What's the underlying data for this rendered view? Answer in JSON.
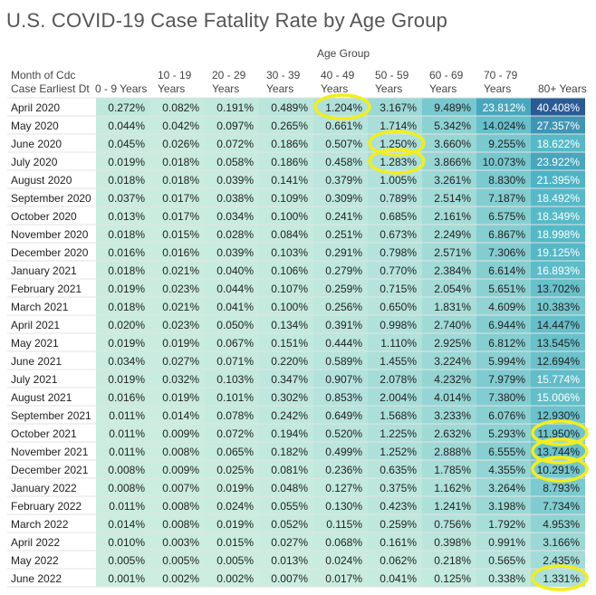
{
  "title": "U.S. COVID-19 Case Fatality Rate by Age Group",
  "column_group_label": "Age Group",
  "row_header": [
    "Month of Cdc",
    "Case Earliest Dt"
  ],
  "columns": [
    {
      "line1": "",
      "line2": "0 - 9 Years"
    },
    {
      "line1": "10 - 19",
      "line2": "Years"
    },
    {
      "line1": "20 - 29",
      "line2": "Years"
    },
    {
      "line1": "30 - 39",
      "line2": "Years"
    },
    {
      "line1": "40 - 49",
      "line2": "Years"
    },
    {
      "line1": "50 - 59",
      "line2": "Years"
    },
    {
      "line1": "60 - 69",
      "line2": "Years"
    },
    {
      "line1": "70 - 79",
      "line2": "Years"
    },
    {
      "line1": "",
      "line2": "80+ Years"
    }
  ],
  "colors": {
    "low": "#cdeee0",
    "mid": "#4fb6c6",
    "high": "#2a5b94",
    "highlight": "#f2ee1a",
    "grid": "#e3e3e3"
  },
  "chart_data": {
    "type": "table",
    "title": "U.S. COVID-19 Case Fatality Rate by Age Group",
    "column_dimension": "Age Group",
    "row_dimension": "Month of Cdc Case Earliest Dt",
    "value_format": "percent (3 decimals)",
    "columns": [
      "0 - 9 Years",
      "10 - 19 Years",
      "20 - 29 Years",
      "30 - 39 Years",
      "40 - 49 Years",
      "50 - 59 Years",
      "60 - 69 Years",
      "70 - 79 Years",
      "80+ Years"
    ],
    "rows": [
      {
        "month": "April 2020",
        "values": [
          0.272,
          0.082,
          0.191,
          0.489,
          1.204,
          3.167,
          9.489,
          23.812,
          40.408
        ]
      },
      {
        "month": "May 2020",
        "values": [
          0.044,
          0.042,
          0.097,
          0.265,
          0.661,
          1.714,
          5.342,
          14.024,
          27.357
        ]
      },
      {
        "month": "June 2020",
        "values": [
          0.045,
          0.026,
          0.072,
          0.186,
          0.507,
          1.25,
          3.66,
          9.255,
          18.622
        ]
      },
      {
        "month": "July 2020",
        "values": [
          0.019,
          0.018,
          0.058,
          0.186,
          0.458,
          1.283,
          3.866,
          10.073,
          23.922
        ]
      },
      {
        "month": "August 2020",
        "values": [
          0.018,
          0.018,
          0.039,
          0.141,
          0.379,
          1.005,
          3.261,
          8.83,
          21.395
        ]
      },
      {
        "month": "September 2020",
        "values": [
          0.037,
          0.017,
          0.038,
          0.109,
          0.309,
          0.789,
          2.514,
          7.187,
          18.492
        ]
      },
      {
        "month": "October 2020",
        "values": [
          0.013,
          0.017,
          0.034,
          0.1,
          0.241,
          0.685,
          2.161,
          6.575,
          18.349
        ]
      },
      {
        "month": "November 2020",
        "values": [
          0.018,
          0.015,
          0.028,
          0.084,
          0.251,
          0.673,
          2.249,
          6.867,
          18.998
        ]
      },
      {
        "month": "December 2020",
        "values": [
          0.016,
          0.016,
          0.039,
          0.103,
          0.291,
          0.798,
          2.571,
          7.306,
          19.125
        ]
      },
      {
        "month": "January 2021",
        "values": [
          0.018,
          0.021,
          0.04,
          0.106,
          0.279,
          0.77,
          2.384,
          6.614,
          16.893
        ]
      },
      {
        "month": "February 2021",
        "values": [
          0.019,
          0.023,
          0.044,
          0.107,
          0.259,
          0.715,
          2.054,
          5.651,
          13.702
        ]
      },
      {
        "month": "March 2021",
        "values": [
          0.018,
          0.021,
          0.041,
          0.1,
          0.256,
          0.65,
          1.831,
          4.609,
          10.383
        ]
      },
      {
        "month": "April 2021",
        "values": [
          0.02,
          0.023,
          0.05,
          0.134,
          0.391,
          0.998,
          2.74,
          6.944,
          14.447
        ]
      },
      {
        "month": "May 2021",
        "values": [
          0.019,
          0.019,
          0.067,
          0.151,
          0.444,
          1.11,
          2.925,
          6.812,
          13.545
        ]
      },
      {
        "month": "June 2021",
        "values": [
          0.034,
          0.027,
          0.071,
          0.22,
          0.589,
          1.455,
          3.224,
          5.994,
          12.694
        ]
      },
      {
        "month": "July 2021",
        "values": [
          0.019,
          0.032,
          0.103,
          0.347,
          0.907,
          2.078,
          4.232,
          7.979,
          15.774
        ]
      },
      {
        "month": "August 2021",
        "values": [
          0.016,
          0.019,
          0.101,
          0.302,
          0.853,
          2.004,
          4.014,
          7.38,
          15.006
        ]
      },
      {
        "month": "September 2021",
        "values": [
          0.011,
          0.014,
          0.078,
          0.242,
          0.649,
          1.568,
          3.233,
          6.076,
          12.93
        ]
      },
      {
        "month": "October 2021",
        "values": [
          0.011,
          0.009,
          0.072,
          0.194,
          0.52,
          1.225,
          2.632,
          5.293,
          11.95
        ]
      },
      {
        "month": "November 2021",
        "values": [
          0.011,
          0.008,
          0.065,
          0.182,
          0.499,
          1.252,
          2.888,
          6.555,
          13.744
        ]
      },
      {
        "month": "December 2021",
        "values": [
          0.008,
          0.009,
          0.025,
          0.081,
          0.236,
          0.635,
          1.785,
          4.355,
          10.291
        ]
      },
      {
        "month": "January 2022",
        "values": [
          0.008,
          0.007,
          0.019,
          0.048,
          0.127,
          0.375,
          1.162,
          3.264,
          8.793
        ]
      },
      {
        "month": "February 2022",
        "values": [
          0.011,
          0.008,
          0.024,
          0.055,
          0.13,
          0.423,
          1.241,
          3.198,
          7.734
        ]
      },
      {
        "month": "March 2022",
        "values": [
          0.014,
          0.008,
          0.019,
          0.052,
          0.115,
          0.259,
          0.756,
          1.792,
          4.953
        ]
      },
      {
        "month": "April 2022",
        "values": [
          0.01,
          0.003,
          0.015,
          0.027,
          0.068,
          0.161,
          0.398,
          0.991,
          3.166
        ]
      },
      {
        "month": "May 2022",
        "values": [
          0.005,
          0.005,
          0.005,
          0.013,
          0.024,
          0.062,
          0.218,
          0.565,
          2.435
        ]
      },
      {
        "month": "June 2022",
        "values": [
          0.001,
          0.002,
          0.002,
          0.007,
          0.017,
          0.041,
          0.125,
          0.338,
          1.331
        ]
      }
    ],
    "highlighted_cells": [
      {
        "month": "April 2020",
        "column": "40 - 49 Years"
      },
      {
        "month": "June 2020",
        "column": "50 - 59 Years"
      },
      {
        "month": "July 2020",
        "column": "50 - 59 Years"
      },
      {
        "month": "October 2021",
        "column": "80+ Years"
      },
      {
        "month": "November 2021",
        "column": "80+ Years"
      },
      {
        "month": "December 2021",
        "column": "80+ Years"
      },
      {
        "month": "June 2022",
        "column": "80+ Years"
      }
    ]
  }
}
